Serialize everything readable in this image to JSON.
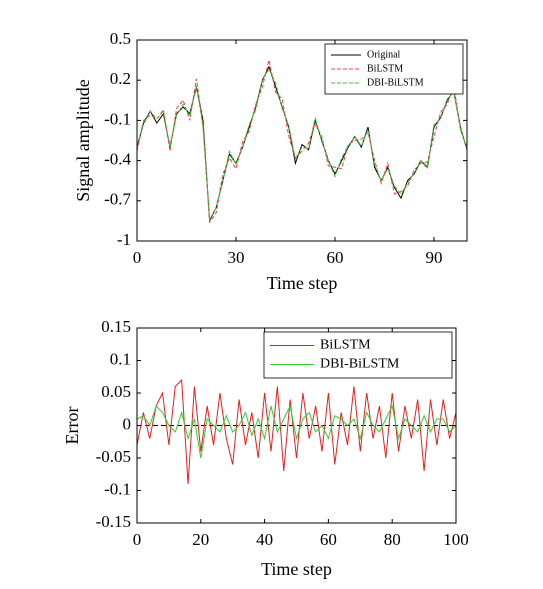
{
  "chart_data": [
    {
      "type": "line",
      "y_label": "Signal amplitude",
      "x_label": "Time step",
      "x": [
        0,
        2,
        4,
        6,
        8,
        10,
        12,
        14,
        16,
        18,
        20,
        22,
        24,
        26,
        28,
        30,
        32,
        34,
        36,
        38,
        40,
        42,
        44,
        46,
        48,
        50,
        52,
        54,
        56,
        58,
        60,
        62,
        64,
        66,
        68,
        70,
        72,
        74,
        76,
        78,
        80,
        82,
        84,
        86,
        88,
        90,
        92,
        94,
        96,
        98,
        100
      ],
      "series": [
        {
          "name": "Original",
          "color": "#000000",
          "line_style": "solid",
          "values": [
            -0.3,
            -0.12,
            -0.03,
            -0.12,
            -0.05,
            -0.3,
            -0.05,
            0.0,
            -0.05,
            0.15,
            -0.1,
            -0.85,
            -0.75,
            -0.55,
            -0.35,
            -0.42,
            -0.3,
            -0.15,
            0.0,
            0.2,
            0.3,
            0.15,
            0.0,
            -0.15,
            -0.42,
            -0.28,
            -0.32,
            -0.1,
            -0.25,
            -0.4,
            -0.5,
            -0.4,
            -0.3,
            -0.22,
            -0.3,
            -0.15,
            -0.45,
            -0.55,
            -0.45,
            -0.6,
            -0.68,
            -0.55,
            -0.5,
            -0.4,
            -0.45,
            -0.15,
            -0.08,
            0.05,
            0.12,
            -0.15,
            -0.32
          ]
        },
        {
          "name": "BiLSTM",
          "color": "#e8474f",
          "line_style": "dashed",
          "values": [
            -0.33,
            -0.1,
            -0.06,
            -0.09,
            -0.02,
            -0.33,
            -0.01,
            0.05,
            -0.1,
            0.21,
            -0.14,
            -0.86,
            -0.79,
            -0.5,
            -0.38,
            -0.46,
            -0.26,
            -0.18,
            0.02,
            0.15,
            0.35,
            0.11,
            0.06,
            -0.22,
            -0.38,
            -0.33,
            -0.27,
            -0.12,
            -0.22,
            -0.44,
            -0.45,
            -0.46,
            -0.28,
            -0.25,
            -0.24,
            -0.19,
            -0.4,
            -0.57,
            -0.42,
            -0.65,
            -0.63,
            -0.59,
            -0.47,
            -0.42,
            -0.41,
            -0.22,
            -0.04,
            0.02,
            0.16,
            -0.17,
            -0.3
          ]
        },
        {
          "name": "DBI-BiLSTM",
          "color": "#3cc83c",
          "line_style": "dashed",
          "values": [
            -0.29,
            -0.11,
            -0.03,
            -0.09,
            -0.03,
            -0.3,
            -0.06,
            0.02,
            -0.07,
            0.16,
            -0.15,
            -0.84,
            -0.75,
            -0.56,
            -0.33,
            -0.43,
            -0.3,
            -0.13,
            -0.02,
            0.21,
            0.28,
            0.18,
            -0.01,
            -0.14,
            -0.39,
            -0.3,
            -0.31,
            -0.08,
            -0.26,
            -0.4,
            -0.52,
            -0.38,
            -0.29,
            -0.22,
            -0.29,
            -0.17,
            -0.43,
            -0.55,
            -0.46,
            -0.59,
            -0.65,
            -0.57,
            -0.49,
            -0.4,
            -0.46,
            -0.13,
            -0.09,
            0.06,
            0.11,
            -0.16,
            -0.32
          ]
        }
      ],
      "xlim": [
        0,
        100
      ],
      "xticks": [
        0,
        30,
        60,
        90
      ],
      "ylim": [
        -1,
        0.5
      ],
      "yticks": [
        -1,
        -0.7,
        -0.4,
        -0.1,
        0.2,
        0.5
      ],
      "legend": "upper right"
    },
    {
      "type": "line",
      "y_label": "Error",
      "x_label": "Time step",
      "x": [
        0,
        2,
        4,
        6,
        8,
        10,
        12,
        14,
        16,
        18,
        20,
        22,
        24,
        26,
        28,
        30,
        32,
        34,
        36,
        38,
        40,
        42,
        44,
        46,
        48,
        50,
        52,
        54,
        56,
        58,
        60,
        62,
        64,
        66,
        68,
        70,
        72,
        74,
        76,
        78,
        80,
        82,
        84,
        86,
        88,
        90,
        92,
        94,
        96,
        98,
        100
      ],
      "series": [
        {
          "name": "BiLSTM",
          "color": "#e02020",
          "line_style": "solid",
          "values": [
            -0.03,
            0.02,
            -0.02,
            0.03,
            0.05,
            -0.03,
            0.06,
            0.07,
            -0.09,
            0.06,
            -0.04,
            0.03,
            -0.03,
            0.05,
            -0.02,
            -0.06,
            0.04,
            -0.03,
            0.02,
            -0.05,
            0.05,
            -0.04,
            0.06,
            -0.07,
            0.04,
            -0.05,
            0.05,
            -0.02,
            0.03,
            -0.04,
            0.05,
            -0.06,
            0.02,
            -0.03,
            0.06,
            -0.04,
            0.05,
            -0.02,
            0.03,
            -0.05,
            0.05,
            -0.04,
            0.03,
            -0.02,
            0.04,
            -0.07,
            0.04,
            -0.03,
            0.04,
            -0.02,
            0.02
          ]
        },
        {
          "name": "DBI-BiLSTM",
          "color": "#33cc33",
          "line_style": "solid",
          "values": [
            0.01,
            0.015,
            0.0,
            0.03,
            0.02,
            0.0,
            -0.01,
            0.02,
            -0.02,
            0.01,
            -0.05,
            0.01,
            0.0,
            -0.01,
            0.015,
            -0.01,
            0.0,
            0.02,
            -0.015,
            0.01,
            -0.02,
            0.03,
            -0.01,
            0.01,
            0.03,
            -0.02,
            0.01,
            0.02,
            -0.01,
            0.0,
            -0.02,
            0.015,
            0.01,
            0.0,
            0.01,
            -0.02,
            0.02,
            0.0,
            -0.01,
            0.01,
            0.03,
            -0.02,
            0.01,
            0.0,
            -0.01,
            0.015,
            -0.01,
            0.01,
            0.01,
            -0.01,
            0.0
          ]
        }
      ],
      "reference_line": 0,
      "xlim": [
        0,
        100
      ],
      "xticks": [
        0,
        20,
        40,
        60,
        80,
        100
      ],
      "ylim": [
        -0.15,
        0.15
      ],
      "yticks": [
        -0.15,
        -0.1,
        -0.05,
        0,
        0.05,
        0.1,
        0.15
      ],
      "legend": "upper right"
    }
  ]
}
